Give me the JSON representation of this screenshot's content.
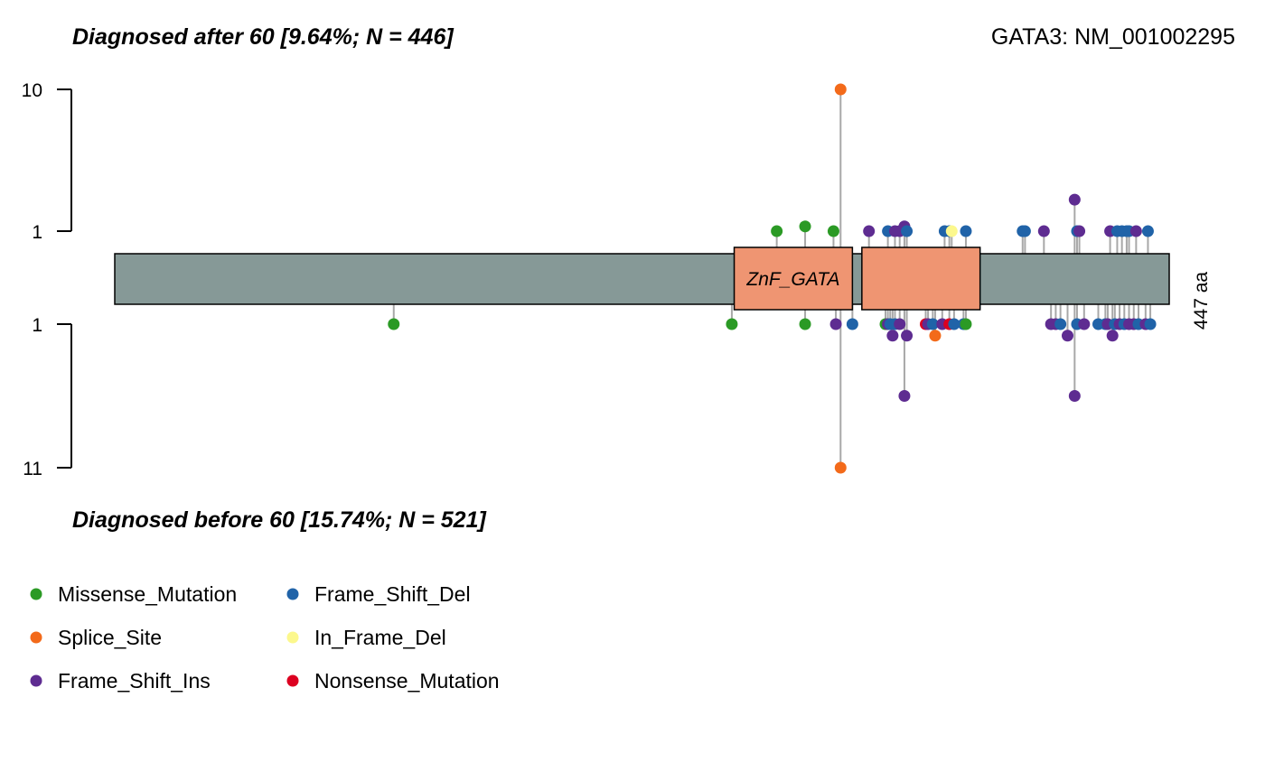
{
  "chart_data": {
    "type": "lollipop",
    "gene_label": "GATA3: NM_001002295",
    "protein_length": 447,
    "protein_length_label": "447 aa",
    "top_title": "Diagnosed after 60 [9.64%; N = 446]",
    "bottom_title": "Diagnosed before 60 [15.74%; N = 521]",
    "top_axis": {
      "ticks": [
        "10",
        "1"
      ],
      "ylim": [
        0,
        10
      ]
    },
    "bottom_axis": {
      "ticks": [
        "1",
        "11"
      ],
      "ylim": [
        0,
        11
      ]
    },
    "domains": [
      {
        "label": "ZnF_GATA",
        "start": 263,
        "end": 313
      },
      {
        "label": "",
        "start": 317,
        "end": 367
      }
    ],
    "colors": {
      "backbone": "#869997",
      "domain": "#EF9572",
      "stem": "#A8A8A8",
      "Missense_Mutation": "#2B9A25",
      "Splice_Site": "#F36A1A",
      "Frame_Shift_Ins": "#5E2C91",
      "Frame_Shift_Del": "#2063A8",
      "In_Frame_Del": "#FCF88D",
      "Nonsense_Mutation": "#DC0020"
    },
    "legend": [
      {
        "label": "Missense_Mutation",
        "type": "Missense_Mutation"
      },
      {
        "label": "Splice_Site",
        "type": "Splice_Site"
      },
      {
        "label": "Frame_Shift_Ins",
        "type": "Frame_Shift_Ins"
      },
      {
        "label": "Frame_Shift_Del",
        "type": "Frame_Shift_Del"
      },
      {
        "label": "In_Frame_Del",
        "type": "In_Frame_Del"
      },
      {
        "label": "Nonsense_Mutation",
        "type": "Nonsense_Mutation"
      }
    ],
    "top_mutations": [
      {
        "pos": 281,
        "count": 1,
        "type": "Missense_Mutation"
      },
      {
        "pos": 293,
        "count": 1.3,
        "type": "Missense_Mutation"
      },
      {
        "pos": 305,
        "count": 1,
        "type": "Missense_Mutation"
      },
      {
        "pos": 308,
        "count": 10,
        "type": "Splice_Site"
      },
      {
        "pos": 320,
        "count": 1,
        "type": "Frame_Shift_Ins"
      },
      {
        "pos": 328,
        "count": 1,
        "type": "Frame_Shift_Del"
      },
      {
        "pos": 331,
        "count": 1,
        "type": "Frame_Shift_Ins"
      },
      {
        "pos": 333,
        "count": 1,
        "type": "Frame_Shift_Ins"
      },
      {
        "pos": 335,
        "count": 1.3,
        "type": "Frame_Shift_Ins"
      },
      {
        "pos": 336,
        "count": 1,
        "type": "Frame_Shift_Del"
      },
      {
        "pos": 352,
        "count": 1,
        "type": "Frame_Shift_Del"
      },
      {
        "pos": 354,
        "count": 1,
        "type": "Frame_Shift_Del"
      },
      {
        "pos": 355,
        "count": 1,
        "type": "In_Frame_Del"
      },
      {
        "pos": 361,
        "count": 1,
        "type": "Frame_Shift_Del"
      },
      {
        "pos": 385,
        "count": 1,
        "type": "Frame_Shift_Del"
      },
      {
        "pos": 386,
        "count": 1,
        "type": "Frame_Shift_Del"
      },
      {
        "pos": 394,
        "count": 1,
        "type": "Frame_Shift_Ins"
      },
      {
        "pos": 407,
        "count": 3,
        "type": "Frame_Shift_Ins"
      },
      {
        "pos": 408,
        "count": 1,
        "type": "Frame_Shift_Del"
      },
      {
        "pos": 409,
        "count": 1,
        "type": "Frame_Shift_Ins"
      },
      {
        "pos": 422,
        "count": 1,
        "type": "Frame_Shift_Ins"
      },
      {
        "pos": 425,
        "count": 1,
        "type": "Frame_Shift_Del"
      },
      {
        "pos": 427,
        "count": 1,
        "type": "Frame_Shift_Del"
      },
      {
        "pos": 429,
        "count": 1,
        "type": "Frame_Shift_Del"
      },
      {
        "pos": 430,
        "count": 1,
        "type": "Frame_Shift_Del"
      },
      {
        "pos": 433,
        "count": 1,
        "type": "Frame_Shift_Ins"
      },
      {
        "pos": 438,
        "count": 1,
        "type": "Frame_Shift_Del"
      }
    ],
    "bottom_mutations": [
      {
        "pos": 119,
        "count": 1,
        "type": "Missense_Mutation"
      },
      {
        "pos": 262,
        "count": 1,
        "type": "Missense_Mutation"
      },
      {
        "pos": 293,
        "count": 1,
        "type": "Missense_Mutation"
      },
      {
        "pos": 306,
        "count": 1,
        "type": "Frame_Shift_Ins"
      },
      {
        "pos": 308,
        "count": 11,
        "type": "Splice_Site"
      },
      {
        "pos": 313,
        "count": 1,
        "type": "Frame_Shift_Del"
      },
      {
        "pos": 327,
        "count": 1,
        "type": "Missense_Mutation"
      },
      {
        "pos": 328,
        "count": 1,
        "type": "Frame_Shift_Ins"
      },
      {
        "pos": 329,
        "count": 1,
        "type": "Frame_Shift_Del"
      },
      {
        "pos": 330,
        "count": 1.8,
        "type": "Frame_Shift_Ins"
      },
      {
        "pos": 331,
        "count": 1,
        "type": "Frame_Shift_Del"
      },
      {
        "pos": 333,
        "count": 1,
        "type": "Frame_Shift_Ins"
      },
      {
        "pos": 335,
        "count": 6,
        "type": "Frame_Shift_Ins"
      },
      {
        "pos": 336,
        "count": 1.8,
        "type": "Frame_Shift_Ins"
      },
      {
        "pos": 344,
        "count": 1,
        "type": "Nonsense_Mutation"
      },
      {
        "pos": 345,
        "count": 1,
        "type": "Frame_Shift_Ins"
      },
      {
        "pos": 347,
        "count": 1,
        "type": "Frame_Shift_Del"
      },
      {
        "pos": 348,
        "count": 1.8,
        "type": "Splice_Site"
      },
      {
        "pos": 351,
        "count": 1,
        "type": "Frame_Shift_Ins"
      },
      {
        "pos": 354,
        "count": 1,
        "type": "Nonsense_Mutation"
      },
      {
        "pos": 356,
        "count": 1,
        "type": "Frame_Shift_Del"
      },
      {
        "pos": 360,
        "count": 1,
        "type": "Frame_Shift_Del"
      },
      {
        "pos": 361,
        "count": 1,
        "type": "Missense_Mutation"
      },
      {
        "pos": 397,
        "count": 1,
        "type": "Frame_Shift_Ins"
      },
      {
        "pos": 399,
        "count": 1,
        "type": "Frame_Shift_Ins"
      },
      {
        "pos": 401,
        "count": 1,
        "type": "Frame_Shift_Del"
      },
      {
        "pos": 404,
        "count": 1.8,
        "type": "Frame_Shift_Ins"
      },
      {
        "pos": 407,
        "count": 6,
        "type": "Frame_Shift_Ins"
      },
      {
        "pos": 408,
        "count": 1,
        "type": "Frame_Shift_Del"
      },
      {
        "pos": 411,
        "count": 1,
        "type": "Frame_Shift_Ins"
      },
      {
        "pos": 417,
        "count": 1,
        "type": "Frame_Shift_Del"
      },
      {
        "pos": 420,
        "count": 1,
        "type": "Frame_Shift_Del"
      },
      {
        "pos": 421,
        "count": 1,
        "type": "Frame_Shift_Ins"
      },
      {
        "pos": 423,
        "count": 1.8,
        "type": "Frame_Shift_Ins"
      },
      {
        "pos": 424,
        "count": 1,
        "type": "Frame_Shift_Del"
      },
      {
        "pos": 426,
        "count": 1,
        "type": "Frame_Shift_Ins"
      },
      {
        "pos": 428,
        "count": 1,
        "type": "Frame_Shift_Del"
      },
      {
        "pos": 430,
        "count": 1,
        "type": "Frame_Shift_Ins"
      },
      {
        "pos": 432,
        "count": 1,
        "type": "Frame_Shift_Ins"
      },
      {
        "pos": 434,
        "count": 1,
        "type": "Frame_Shift_Del"
      },
      {
        "pos": 437,
        "count": 1,
        "type": "Frame_Shift_Ins"
      },
      {
        "pos": 439,
        "count": 1,
        "type": "Frame_Shift_Del"
      }
    ]
  }
}
